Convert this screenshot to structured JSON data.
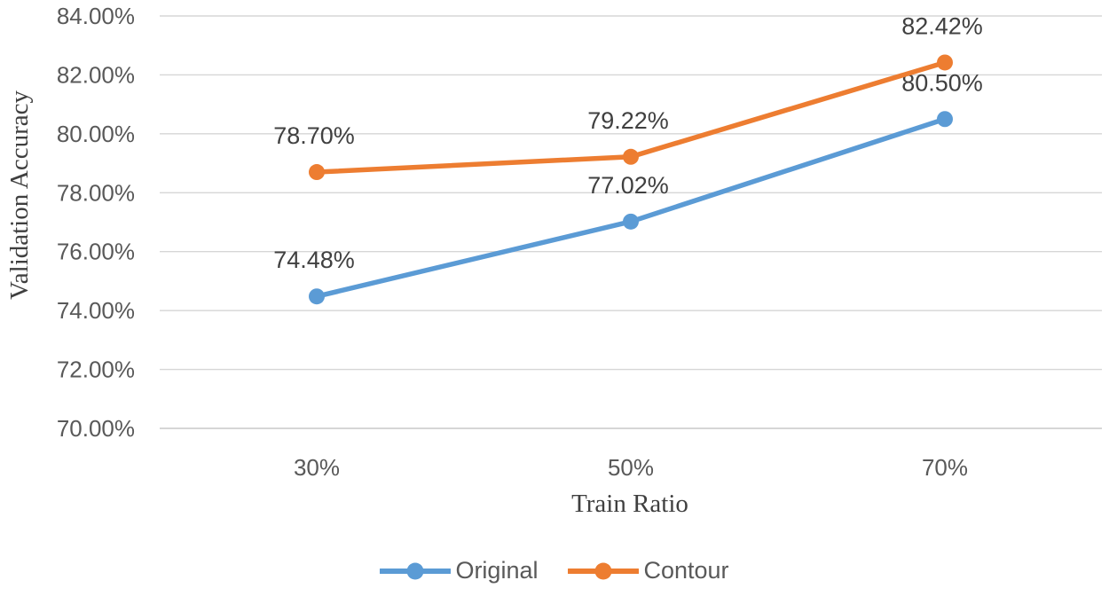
{
  "chart_data": {
    "type": "line",
    "title": "",
    "categories": [
      "30%",
      "50%",
      "70%"
    ],
    "series": [
      {
        "name": "Original",
        "color": "#5B9BD5",
        "values": [
          74.48,
          77.02,
          80.5
        ],
        "point_labels": [
          "74.48%",
          "77.02%",
          "80.50%"
        ]
      },
      {
        "name": "Contour",
        "color": "#ED7D31",
        "values": [
          78.7,
          79.22,
          82.42
        ],
        "point_labels": [
          "78.70%",
          "79.22%",
          "82.42%"
        ]
      }
    ],
    "xlabel": "Train Ratio",
    "ylabel": "Validation Accuracy",
    "ylim": [
      70,
      84
    ],
    "ytick_step": 2,
    "yticks": [
      {
        "value": 70,
        "label": "70.00%"
      },
      {
        "value": 72,
        "label": "72.00%"
      },
      {
        "value": 74,
        "label": "74.00%"
      },
      {
        "value": 76,
        "label": "76.00%"
      },
      {
        "value": 78,
        "label": "78.00%"
      },
      {
        "value": 80,
        "label": "80.00%"
      },
      {
        "value": 82,
        "label": "82.00%"
      },
      {
        "value": 84,
        "label": "84.00%"
      }
    ],
    "grid": true,
    "legend_position": "bottom"
  },
  "colors": {
    "gridline": "#D6D6D6",
    "axis_line": "#C9C9C9",
    "tick_text": "#595959",
    "data_label_text": "#404040",
    "series_original": "#5B9BD5",
    "series_contour": "#ED7D31"
  }
}
